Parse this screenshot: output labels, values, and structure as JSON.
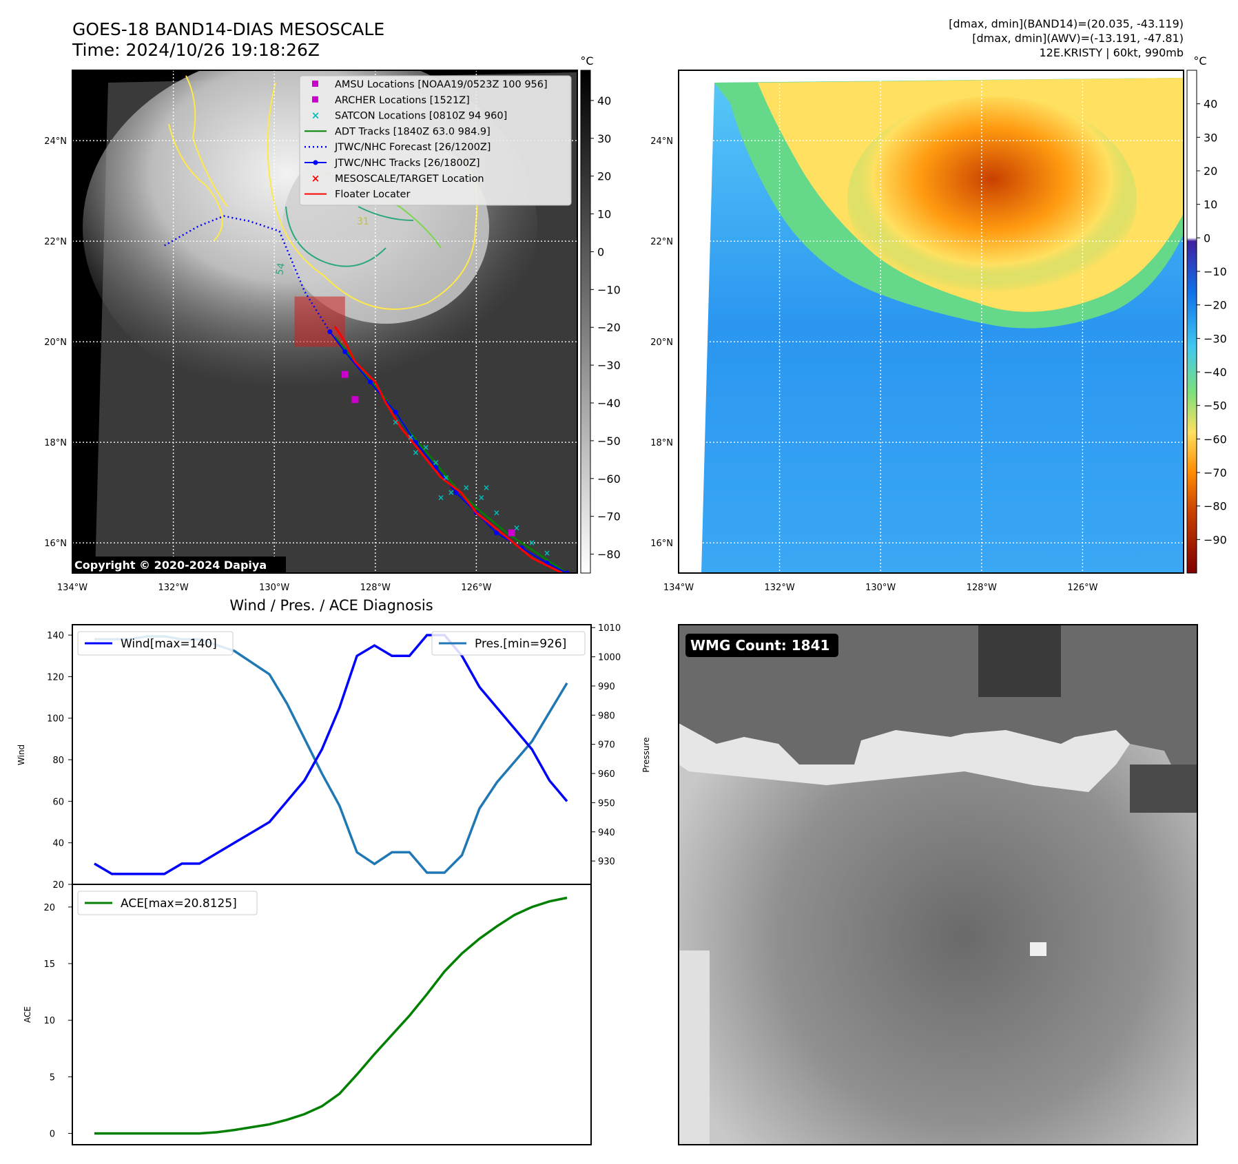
{
  "header": {
    "title_line1": "GOES-18 BAND14-DIAS MESOSCALE",
    "title_line2": "Time: 2024/10/26 19:18:26Z",
    "info_line1": "[dmax, dmin](BAND14)=(20.035, -43.119)",
    "info_line2": "[dmax, dmin](AWV)=(-13.191, -47.81)",
    "info_line3": "12E.KRISTY | 60kt, 990mb"
  },
  "map": {
    "lat_ticks": [
      "24°N",
      "22°N",
      "20°N",
      "18°N",
      "16°N"
    ],
    "lat_values": [
      24,
      22,
      20,
      18,
      16
    ],
    "lon_ticks": [
      "134°W",
      "132°W",
      "130°W",
      "128°W",
      "126°W"
    ],
    "lon_values": [
      -134,
      -132,
      -130,
      -128,
      -126
    ],
    "lon_range": [
      -134,
      -124
    ],
    "lat_range": [
      15.4,
      25.4
    ],
    "copyright": "Copyright © 2020-2024 Dapiya",
    "contour_label_1": "54",
    "contour_label_2": "31",
    "colorbar1_unit": "°C",
    "colorbar1_ticks": [
      "40",
      "30",
      "20",
      "10",
      "0",
      "−10",
      "−20",
      "−30",
      "−40",
      "−50",
      "−60",
      "−70",
      "−80"
    ],
    "colorbar1_values": [
      40,
      30,
      20,
      10,
      0,
      -10,
      -20,
      -30,
      -40,
      -50,
      -60,
      -70,
      -80
    ],
    "colorbar1_range": [
      -85,
      48
    ],
    "colorbar2_unit": "°C",
    "colorbar2_ticks": [
      "40",
      "30",
      "20",
      "10",
      "0",
      "−10",
      "−20",
      "−30",
      "−40",
      "−50",
      "−60",
      "−70",
      "−80",
      "−90"
    ],
    "colorbar2_values": [
      40,
      30,
      20,
      10,
      0,
      -10,
      -20,
      -30,
      -40,
      -50,
      -60,
      -70,
      -80,
      -90
    ],
    "colorbar2_range": [
      -100,
      50
    ],
    "legend": [
      {
        "label": "AMSU Locations [NOAA19/0523Z 100 956]",
        "color": "#cc00cc",
        "marker": "square"
      },
      {
        "label": "ARCHER Locations [1521Z]",
        "color": "#cc00cc",
        "marker": "square"
      },
      {
        "label": "SATCON Locations [0810Z 94 960]",
        "color": "#00bfbf",
        "marker": "x"
      },
      {
        "label": "ADT Tracks [1840Z 63.0 984.9]",
        "color": "#008000",
        "marker": "line"
      },
      {
        "label": "JTWC/NHC Forecast [26/1200Z]",
        "color": "#0000ff",
        "marker": "dotted"
      },
      {
        "label": "JTWC/NHC Tracks [26/1800Z]",
        "color": "#0000ff",
        "marker": "line-dot"
      },
      {
        "label": "MESOSCALE/TARGET Location",
        "color": "#ff0000",
        "marker": "x"
      },
      {
        "label": "Floater Locater",
        "color": "#ff0000",
        "marker": "line"
      }
    ],
    "jtwc_track": [
      [
        -124.2,
        15.4
      ],
      [
        -124.6,
        15.6
      ],
      [
        -125.1,
        15.9
      ],
      [
        -125.6,
        16.2
      ],
      [
        -126.0,
        16.6
      ],
      [
        -126.4,
        17.0
      ],
      [
        -126.8,
        17.5
      ],
      [
        -127.2,
        18.0
      ],
      [
        -127.6,
        18.6
      ],
      [
        -128.1,
        19.2
      ],
      [
        -128.6,
        19.8
      ],
      [
        -128.9,
        20.2
      ]
    ],
    "jtwc_forecast": [
      [
        -128.9,
        20.2
      ],
      [
        -129.4,
        21.0
      ],
      [
        -129.9,
        22.2
      ],
      [
        -130.5,
        22.4
      ],
      [
        -131.0,
        22.5
      ],
      [
        -131.5,
        22.3
      ],
      [
        -132.2,
        21.9
      ]
    ],
    "adt_track": [
      [
        -124.2,
        15.4
      ],
      [
        -124.8,
        15.8
      ],
      [
        -125.4,
        16.2
      ],
      [
        -126.0,
        16.7
      ],
      [
        -126.4,
        17.1
      ],
      [
        -126.9,
        17.7
      ],
      [
        -127.4,
        18.3
      ],
      [
        -127.9,
        19.0
      ],
      [
        -128.4,
        19.6
      ],
      [
        -128.8,
        20.1
      ]
    ],
    "floater": [
      [
        -124.3,
        15.4
      ],
      [
        -124.9,
        15.7
      ],
      [
        -125.5,
        16.2
      ],
      [
        -126.0,
        16.6
      ],
      [
        -126.3,
        17.0
      ],
      [
        -126.7,
        17.3
      ],
      [
        -127.1,
        17.8
      ],
      [
        -127.5,
        18.3
      ],
      [
        -127.8,
        18.8
      ],
      [
        -128.0,
        19.2
      ],
      [
        -128.4,
        19.6
      ],
      [
        -128.6,
        20.0
      ],
      [
        -128.8,
        20.3
      ]
    ],
    "satcon_points": [
      [
        -127.6,
        18.4
      ],
      [
        -127.3,
        18.1
      ],
      [
        -127.0,
        17.9
      ],
      [
        -126.8,
        17.6
      ],
      [
        -126.6,
        17.3
      ],
      [
        -126.2,
        17.1
      ],
      [
        -125.9,
        16.9
      ],
      [
        -125.6,
        16.6
      ],
      [
        -125.2,
        16.3
      ],
      [
        -124.9,
        16.0
      ],
      [
        -124.6,
        15.8
      ],
      [
        -126.5,
        17.0
      ],
      [
        -127.2,
        17.8
      ],
      [
        -125.8,
        17.1
      ],
      [
        -126.7,
        16.9
      ]
    ],
    "amsu_points": [
      [
        -128.6,
        19.35
      ],
      [
        -128.4,
        18.85
      ],
      [
        -125.3,
        16.2
      ]
    ],
    "target_box": [
      -129.6,
      -128.6,
      19.9,
      20.9
    ]
  },
  "diagnosis": {
    "title": "Wind / Pres. / ACE Diagnosis",
    "wind_ylabel": "Wind",
    "pressure_ylabel": "Pressure",
    "ace_ylabel": "ACE",
    "wind_legend": "Wind[max=140]",
    "pres_legend": "Pres.[min=926]",
    "ace_legend": "ACE[max=20.8125]",
    "wind_ticks": [
      "140",
      "120",
      "100",
      "80",
      "60",
      "40",
      "20"
    ],
    "wind_tick_values": [
      140,
      120,
      100,
      80,
      60,
      40,
      20
    ],
    "wind_ylim": [
      20,
      145
    ],
    "pres_ticks": [
      "1010",
      "1000",
      "990",
      "980",
      "970",
      "960",
      "950",
      "940",
      "930"
    ],
    "pres_tick_values": [
      1010,
      1000,
      990,
      980,
      970,
      960,
      950,
      940,
      930
    ],
    "pres_ylim": [
      922,
      1011
    ],
    "ace_ticks": [
      "20",
      "15",
      "10",
      "5",
      "0"
    ],
    "ace_tick_values": [
      20,
      15,
      10,
      5,
      0
    ],
    "ace_ylim": [
      -1,
      22
    ],
    "wind_color": "#0000ff",
    "pres_color": "#1f77b4",
    "ace_color": "#008000"
  },
  "chart_data": [
    {
      "type": "line",
      "title": "Wind / Pres. / ACE Diagnosis",
      "ylabel": "Wind",
      "ylim": [
        20,
        145
      ],
      "x": [
        0,
        1,
        2,
        3,
        4,
        5,
        6,
        7,
        8,
        9,
        10,
        11,
        12,
        13,
        14,
        15,
        16,
        17,
        18,
        19,
        20,
        21,
        22,
        23,
        24,
        25,
        26,
        27
      ],
      "series": [
        {
          "name": "Wind[max=140]",
          "values": [
            30,
            25,
            25,
            25,
            25,
            30,
            30,
            35,
            40,
            45,
            50,
            60,
            70,
            85,
            105,
            130,
            135,
            130,
            130,
            140,
            140,
            130,
            115,
            105,
            95,
            85,
            70,
            60
          ]
        }
      ]
    },
    {
      "type": "line",
      "ylabel": "Pressure",
      "ylim": [
        922,
        1011
      ],
      "x": [
        0,
        1,
        2,
        3,
        4,
        5,
        6,
        7,
        8,
        9,
        10,
        11,
        12,
        13,
        14,
        15,
        16,
        17,
        18,
        19,
        20,
        21,
        22,
        23,
        24,
        25,
        26,
        27
      ],
      "series": [
        {
          "name": "Pres.[min=926]",
          "values": [
            1006,
            1006,
            1006,
            1007,
            1007,
            1006,
            1006,
            1004,
            1002,
            998,
            994,
            984,
            972,
            960,
            949,
            933,
            929,
            933,
            933,
            926,
            926,
            932,
            948,
            957,
            964,
            971,
            981,
            991
          ]
        }
      ]
    },
    {
      "type": "line",
      "ylabel": "ACE",
      "ylim": [
        -1,
        22
      ],
      "x": [
        0,
        1,
        2,
        3,
        4,
        5,
        6,
        7,
        8,
        9,
        10,
        11,
        12,
        13,
        14,
        15,
        16,
        17,
        18,
        19,
        20,
        21,
        22,
        23,
        24,
        25,
        26,
        27
      ],
      "series": [
        {
          "name": "ACE[max=20.8125]",
          "values": [
            0,
            0,
            0,
            0,
            0,
            0,
            0,
            0.1,
            0.3,
            0.55,
            0.8,
            1.2,
            1.7,
            2.4,
            3.5,
            5.2,
            7.0,
            8.7,
            10.4,
            12.3,
            14.3,
            15.9,
            17.2,
            18.3,
            19.3,
            20.0,
            20.5,
            20.8125
          ]
        }
      ]
    }
  ],
  "wmg": {
    "label": "WMG Count: 1841"
  }
}
